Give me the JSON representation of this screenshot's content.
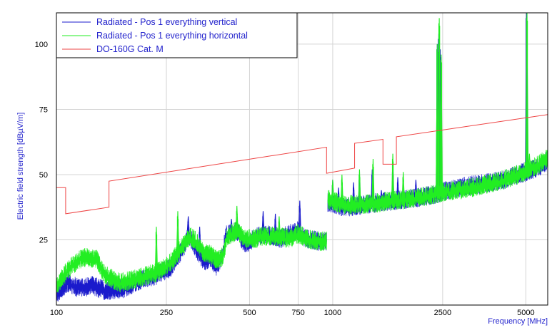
{
  "chart_data": {
    "type": "line",
    "title": "",
    "xlabel": "Frequency [MHz]",
    "ylabel": "Electric field strength [dBµV/m]",
    "x_scale": "log",
    "xlim": [
      100,
      6000
    ],
    "ylim": [
      0,
      112
    ],
    "x_ticks": [
      100,
      250,
      500,
      750,
      1000,
      2500,
      5000
    ],
    "y_ticks": [
      25,
      50,
      75,
      100
    ],
    "grid": true,
    "legend_position": "top-left",
    "series": [
      {
        "name": "Radiated - Pos 1 everything vertical",
        "color": "#1a1acc",
        "style": "noisy",
        "base": [
          [
            100,
            4
          ],
          [
            110,
            8
          ],
          [
            120,
            6
          ],
          [
            135,
            7
          ],
          [
            150,
            5
          ],
          [
            175,
            6
          ],
          [
            200,
            9
          ],
          [
            230,
            11
          ],
          [
            260,
            14
          ],
          [
            290,
            22
          ],
          [
            300,
            27
          ],
          [
            310,
            24
          ],
          [
            330,
            19
          ],
          [
            345,
            16
          ],
          [
            360,
            18
          ],
          [
            380,
            14
          ],
          [
            400,
            19
          ],
          [
            410,
            27
          ],
          [
            450,
            28
          ],
          [
            480,
            23
          ],
          [
            520,
            25
          ],
          [
            560,
            27
          ],
          [
            600,
            26
          ],
          [
            650,
            25
          ],
          [
            700,
            27
          ],
          [
            750,
            28
          ],
          [
            800,
            25
          ],
          [
            900,
            24
          ],
          [
            950,
            24
          ],
          [
            960,
            39
          ],
          [
            1100,
            37
          ],
          [
            1300,
            38
          ],
          [
            1500,
            39
          ],
          [
            1800,
            40
          ],
          [
            2100,
            41
          ],
          [
            2350,
            42
          ],
          [
            2500,
            43
          ],
          [
            3000,
            45
          ],
          [
            4000,
            47
          ],
          [
            4800,
            50
          ],
          [
            5500,
            52
          ],
          [
            6000,
            55
          ]
        ],
        "spikes": [
          [
            300,
            34
          ],
          [
            330,
            30
          ],
          [
            430,
            33
          ],
          [
            560,
            36
          ],
          [
            620,
            35
          ],
          [
            760,
            40
          ],
          [
            1000,
            48
          ],
          [
            1050,
            45
          ],
          [
            1190,
            47
          ],
          [
            1250,
            50
          ],
          [
            1390,
            52
          ],
          [
            1500,
            44
          ],
          [
            1650,
            53
          ],
          [
            1720,
            49
          ],
          [
            2000,
            48
          ],
          [
            2390,
            100
          ],
          [
            2420,
            104
          ],
          [
            2450,
            98
          ],
          [
            5030,
            112
          ],
          [
            5100,
            55
          ]
        ],
        "noise": 3
      },
      {
        "name": "Radiated - Pos 1 everything horizontal",
        "color": "#22ee22",
        "style": "noisy",
        "base": [
          [
            100,
            7
          ],
          [
            110,
            13
          ],
          [
            120,
            17
          ],
          [
            130,
            18
          ],
          [
            140,
            17
          ],
          [
            150,
            11
          ],
          [
            170,
            8
          ],
          [
            200,
            10
          ],
          [
            230,
            12
          ],
          [
            260,
            16
          ],
          [
            290,
            23
          ],
          [
            305,
            26
          ],
          [
            320,
            24
          ],
          [
            340,
            20
          ],
          [
            360,
            19
          ],
          [
            380,
            17
          ],
          [
            400,
            18
          ],
          [
            415,
            26
          ],
          [
            450,
            28
          ],
          [
            480,
            25
          ],
          [
            520,
            25
          ],
          [
            560,
            26
          ],
          [
            620,
            26
          ],
          [
            700,
            25
          ],
          [
            750,
            27
          ],
          [
            800,
            25
          ],
          [
            900,
            24
          ],
          [
            950,
            24
          ],
          [
            960,
            40
          ],
          [
            1100,
            38
          ],
          [
            1300,
            38
          ],
          [
            1500,
            39
          ],
          [
            1800,
            40
          ],
          [
            2100,
            41
          ],
          [
            2350,
            42
          ],
          [
            2500,
            43
          ],
          [
            3000,
            44
          ],
          [
            4000,
            47
          ],
          [
            4800,
            50
          ],
          [
            5500,
            53
          ],
          [
            6000,
            56
          ]
        ],
        "spikes": [
          [
            230,
            30
          ],
          [
            275,
            36
          ],
          [
            450,
            38
          ],
          [
            640,
            34
          ],
          [
            1000,
            48
          ],
          [
            1080,
            50
          ],
          [
            1250,
            52
          ],
          [
            1400,
            56
          ],
          [
            1650,
            58
          ],
          [
            1800,
            51
          ],
          [
            2390,
            100
          ],
          [
            2430,
            110
          ],
          [
            2470,
            96
          ],
          [
            5050,
            112
          ],
          [
            5150,
            58
          ]
        ],
        "noise": 3
      },
      {
        "name": "DO-160G Cat. M",
        "color": "#ee4444",
        "style": "line",
        "points": [
          [
            100,
            45
          ],
          [
            108,
            45
          ],
          [
            108,
            35
          ],
          [
            155,
            37.5
          ],
          [
            155,
            47.5
          ],
          [
            950,
            60.5
          ],
          [
            950,
            50.5
          ],
          [
            1200,
            52.5
          ],
          [
            1200,
            62
          ],
          [
            1520,
            63.5
          ],
          [
            1520,
            54
          ],
          [
            1700,
            54
          ],
          [
            1700,
            64.5
          ],
          [
            6000,
            73
          ]
        ]
      }
    ]
  }
}
